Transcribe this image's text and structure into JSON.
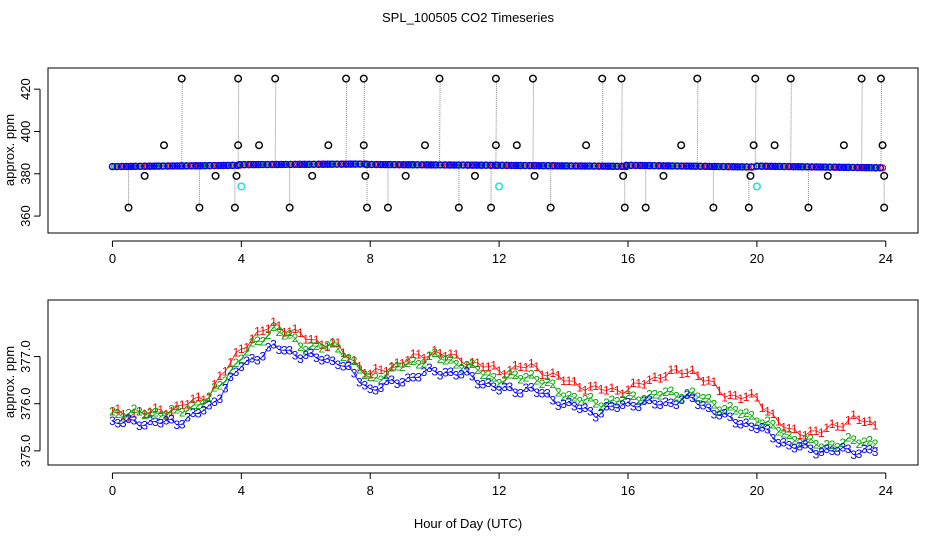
{
  "title": "SPL_100505  CO2 Timeseries",
  "xlabel": "Hour of Day (UTC)",
  "colors": {
    "axis": "#000000",
    "series1": "#ff0000",
    "series2": "#00aa00",
    "series3": "#0000ff",
    "outlier": "#000000",
    "cyan": "#33dddd",
    "stem": "#888888",
    "band_mid": "#22aa66"
  },
  "chart_data": [
    {
      "type": "scatter",
      "name": "raw-co2",
      "ylabel": "approx. ppm",
      "xlim": [
        -2,
        25
      ],
      "ylim": [
        352,
        430
      ],
      "xticks": [
        0,
        4,
        8,
        12,
        16,
        20,
        24
      ],
      "yticks": [
        360,
        380,
        400,
        420
      ],
      "band_segments": [
        {
          "x0": 0.0,
          "x1": 3.95,
          "y0": 383.4,
          "y1": 384.0
        },
        {
          "x0": 3.95,
          "x1": 7.9,
          "y0": 384.3,
          "y1": 384.6
        },
        {
          "x0": 7.9,
          "x1": 11.95,
          "y0": 384.4,
          "y1": 384.0
        },
        {
          "x0": 11.95,
          "x1": 15.95,
          "y0": 384.0,
          "y1": 383.5
        },
        {
          "x0": 15.95,
          "x1": 19.9,
          "y0": 384.0,
          "y1": 383.2
        },
        {
          "x0": 20.0,
          "x1": 23.9,
          "y0": 383.6,
          "y1": 382.8
        }
      ],
      "high_outliers": [
        2.15,
        3.9,
        5.05,
        7.25,
        7.8,
        10.15,
        11.9,
        13.05,
        15.2,
        15.8,
        18.15,
        19.95,
        21.05,
        23.25,
        23.85
      ],
      "high_value": 425,
      "low_outliers": [
        0.5,
        2.7,
        3.8,
        5.5,
        7.9,
        8.55,
        10.75,
        11.75,
        13.6,
        15.9,
        16.55,
        18.65,
        19.75,
        21.6,
        23.95
      ],
      "low_value": 364,
      "mid_outliers": [
        {
          "x": 1.6,
          "y": 393.5
        },
        {
          "x": 3.9,
          "y": 393.5
        },
        {
          "x": 4.55,
          "y": 393.5
        },
        {
          "x": 6.7,
          "y": 393.5
        },
        {
          "x": 7.8,
          "y": 393.5
        },
        {
          "x": 9.7,
          "y": 393.5
        },
        {
          "x": 11.9,
          "y": 393.5
        },
        {
          "x": 12.55,
          "y": 393.5
        },
        {
          "x": 14.7,
          "y": 393.5
        },
        {
          "x": 17.65,
          "y": 393.5
        },
        {
          "x": 19.9,
          "y": 393.5
        },
        {
          "x": 20.55,
          "y": 393.5
        },
        {
          "x": 22.7,
          "y": 393.5
        },
        {
          "x": 23.9,
          "y": 393.5
        },
        {
          "x": 1.0,
          "y": 379
        },
        {
          "x": 3.2,
          "y": 379
        },
        {
          "x": 3.85,
          "y": 379
        },
        {
          "x": 6.2,
          "y": 379
        },
        {
          "x": 7.85,
          "y": 379
        },
        {
          "x": 9.1,
          "y": 379
        },
        {
          "x": 11.25,
          "y": 379
        },
        {
          "x": 13.1,
          "y": 379
        },
        {
          "x": 15.85,
          "y": 379
        },
        {
          "x": 17.1,
          "y": 379
        },
        {
          "x": 19.8,
          "y": 379
        },
        {
          "x": 22.2,
          "y": 379
        },
        {
          "x": 23.95,
          "y": 379
        }
      ],
      "cyan_points": [
        {
          "x": 4.0,
          "y": 374
        },
        {
          "x": 12.0,
          "y": 374
        },
        {
          "x": 20.0,
          "y": 374
        }
      ]
    },
    {
      "type": "scatter",
      "name": "averaged-co2",
      "ylabel": "approx. ppm",
      "xlim": [
        -2,
        25
      ],
      "ylim": [
        374.7,
        378.2
      ],
      "xticks": [
        0,
        4,
        8,
        12,
        16,
        20,
        24
      ],
      "yticks": [
        375.0,
        376.0,
        377.0
      ],
      "ytick_labels": [
        "375.0",
        "376.0",
        "377.0"
      ],
      "x": [
        0,
        1,
        2,
        3,
        4,
        5,
        6,
        7,
        8,
        9,
        10,
        11,
        12,
        13,
        14,
        15,
        16,
        17,
        18,
        19,
        20,
        21,
        22,
        23,
        23.8
      ],
      "series": [
        {
          "name": "1",
          "symbol": "1",
          "color": "#ff0000",
          "values": [
            375.8,
            375.8,
            375.9,
            376.2,
            377.2,
            377.7,
            377.4,
            377.2,
            376.6,
            376.9,
            377.1,
            376.9,
            376.7,
            376.8,
            376.5,
            376.3,
            376.3,
            376.6,
            376.7,
            376.2,
            376.1,
            375.4,
            375.4,
            375.7,
            375.5
          ]
        },
        {
          "name": "2",
          "symbol": "2",
          "color": "#00aa00",
          "values": [
            375.8,
            375.8,
            375.8,
            376.1,
            377.0,
            377.6,
            377.2,
            377.2,
            376.5,
            376.8,
            377.0,
            376.8,
            376.5,
            376.6,
            376.2,
            376.0,
            376.1,
            376.2,
            376.2,
            375.9,
            375.7,
            375.3,
            375.1,
            375.2,
            375.2
          ]
        },
        {
          "name": "3",
          "symbol": "3",
          "color": "#0000ff",
          "values": [
            375.6,
            375.6,
            375.6,
            375.9,
            376.8,
            377.2,
            377.0,
            376.9,
            376.3,
            376.5,
            376.7,
            376.6,
            376.3,
            376.3,
            376.0,
            375.8,
            376.0,
            376.0,
            376.1,
            375.7,
            375.5,
            375.1,
            375.0,
            375.0,
            375.0
          ]
        }
      ]
    }
  ]
}
